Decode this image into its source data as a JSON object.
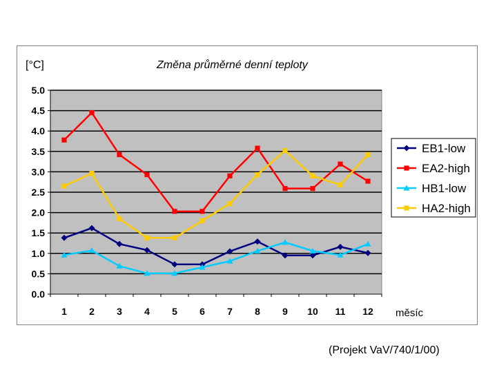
{
  "credit": "(Projekt VaV/740/1/00)",
  "chart_data": {
    "type": "line",
    "title": "Změna průměrné denní teploty",
    "ylabel": "[°C]",
    "xlabel": "měsíc",
    "categories": [
      "1",
      "2",
      "3",
      "4",
      "5",
      "6",
      "7",
      "8",
      "9",
      "10",
      "11",
      "12"
    ],
    "ylim": [
      0,
      5
    ],
    "yticks": [
      "0.0",
      "0.5",
      "1.0",
      "1.5",
      "2.0",
      "2.5",
      "3.0",
      "3.5",
      "4.0",
      "4.5",
      "5.0"
    ],
    "grid": true,
    "legend_position": "right",
    "plot_background": "#c0c0c0",
    "series": [
      {
        "name": "EB1-low",
        "color": "#000080",
        "marker": "diamond",
        "values": [
          1.38,
          1.62,
          1.23,
          1.08,
          0.73,
          0.73,
          1.05,
          1.29,
          0.95,
          0.95,
          1.16,
          1.01
        ]
      },
      {
        "name": "EA2-high",
        "color": "#ff0000",
        "marker": "square",
        "values": [
          3.78,
          4.45,
          3.42,
          2.93,
          2.03,
          2.03,
          2.9,
          3.58,
          2.59,
          2.59,
          3.19,
          2.77
        ]
      },
      {
        "name": "HB1-low",
        "color": "#00ccff",
        "marker": "triangle",
        "values": [
          0.96,
          1.07,
          0.69,
          0.51,
          0.51,
          0.66,
          0.81,
          1.06,
          1.27,
          1.06,
          0.96,
          1.23
        ]
      },
      {
        "name": "HA2-high",
        "color": "#ffcc00",
        "marker": "square",
        "values": [
          2.65,
          2.96,
          1.85,
          1.38,
          1.38,
          1.8,
          2.22,
          2.93,
          3.52,
          2.9,
          2.68,
          3.42
        ]
      }
    ]
  }
}
